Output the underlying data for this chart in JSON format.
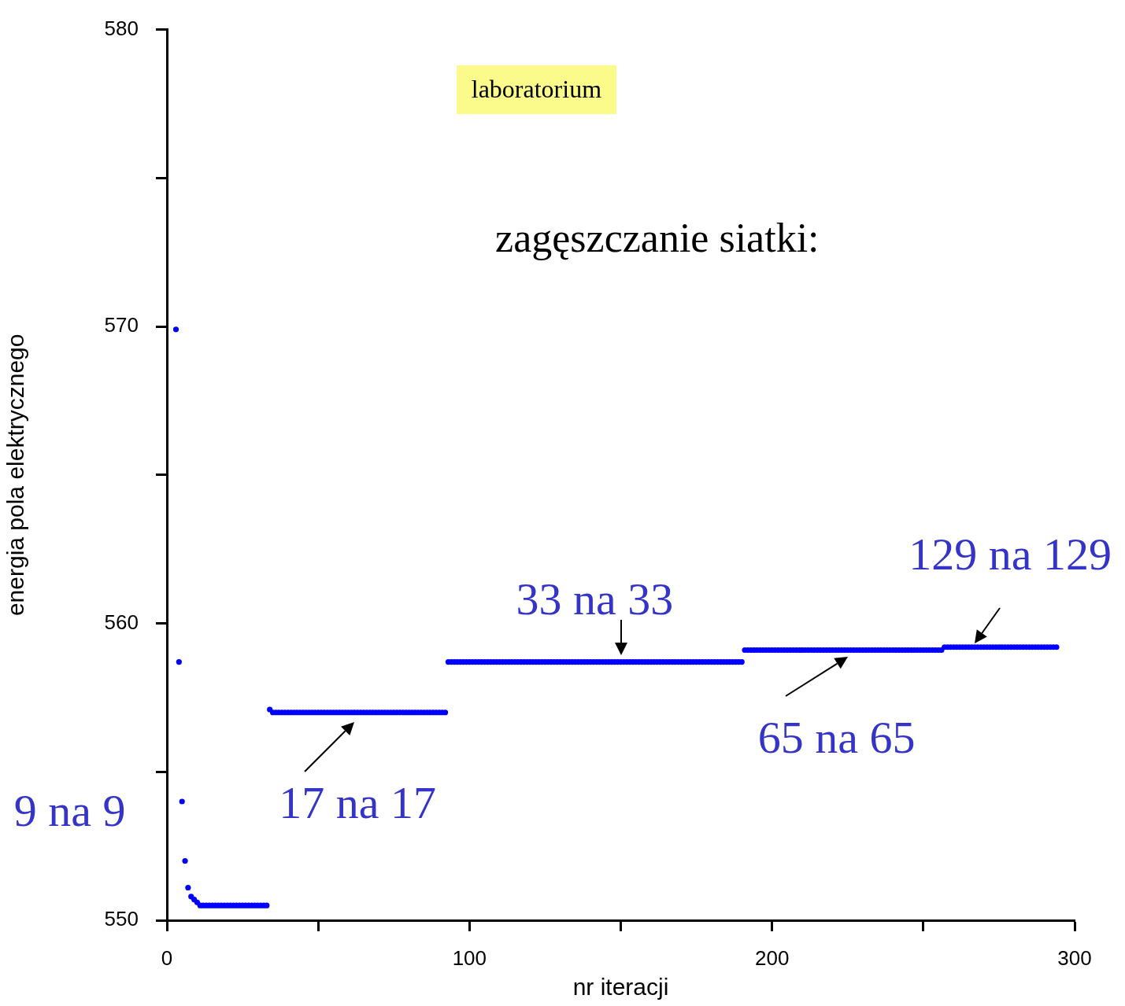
{
  "chart_data": {
    "type": "scatter",
    "title": "zagęszczanie siatki:",
    "xlabel": "nr iteracji",
    "ylabel": "energia pola elektrycznego",
    "annotations": [
      "laboratorium"
    ],
    "xlim": [
      0,
      300
    ],
    "xticks": [
      0,
      {
        "value": 50,
        "label": null
      },
      100,
      {
        "value": 150,
        "label": null
      },
      200,
      {
        "value": 250,
        "label": null
      },
      300
    ],
    "ylim": [
      550,
      580
    ],
    "yticks": [
      550,
      {
        "value": 555,
        "label": null
      },
      560,
      {
        "value": 565,
        "label": null
      },
      570,
      {
        "value": 575,
        "label": null
      },
      580
    ],
    "grid": false,
    "marker": "circle",
    "series": [
      {
        "name": "9 na 9",
        "color": "#0000ff",
        "x": [
          3,
          4,
          5,
          6,
          7,
          8,
          9,
          10,
          11,
          12,
          13,
          14,
          15,
          16,
          17,
          18,
          19,
          20,
          21,
          22,
          23,
          24,
          25,
          26,
          27,
          28,
          29,
          30,
          31,
          32,
          33
        ],
        "values": [
          569.9,
          558.7,
          554.0,
          552.0,
          551.1,
          550.8,
          550.7,
          550.6,
          550.5,
          550.5,
          550.5,
          550.5,
          550.5,
          550.5,
          550.5,
          550.5,
          550.5,
          550.5,
          550.5,
          550.5,
          550.5,
          550.5,
          550.5,
          550.5,
          550.5,
          550.5,
          550.5,
          550.5,
          550.5,
          550.5,
          550.5
        ]
      },
      {
        "name": "17 na 17",
        "color": "#0000ff",
        "x": [
          34,
          35,
          36,
          37,
          38,
          39,
          40,
          41,
          42,
          43,
          44,
          45,
          46,
          47,
          48,
          49,
          50,
          51,
          52,
          53,
          54,
          55,
          56,
          57,
          58,
          59,
          60,
          61,
          62,
          63,
          64,
          65,
          66,
          67,
          68,
          69,
          70,
          71,
          72,
          73,
          74,
          75,
          76,
          77,
          78,
          79,
          80,
          81,
          82,
          83,
          84,
          85,
          86,
          87,
          88,
          89,
          90,
          91,
          92
        ],
        "values": [
          557.1,
          557.0,
          557.0,
          557.0,
          557.0,
          557.0,
          557.0,
          557.0,
          557.0,
          557.0,
          557.0,
          557.0,
          557.0,
          557.0,
          557.0,
          557.0,
          557.0,
          557.0,
          557.0,
          557.0,
          557.0,
          557.0,
          557.0,
          557.0,
          557.0,
          557.0,
          557.0,
          557.0,
          557.0,
          557.0,
          557.0,
          557.0,
          557.0,
          557.0,
          557.0,
          557.0,
          557.0,
          557.0,
          557.0,
          557.0,
          557.0,
          557.0,
          557.0,
          557.0,
          557.0,
          557.0,
          557.0,
          557.0,
          557.0,
          557.0,
          557.0,
          557.0,
          557.0,
          557.0,
          557.0,
          557.0,
          557.0,
          557.0,
          557.0
        ]
      },
      {
        "name": "33 na 33",
        "color": "#0000ff",
        "x": [
          93,
          94,
          95,
          96,
          97,
          98,
          99,
          100,
          101,
          102,
          103,
          104,
          105,
          106,
          107,
          108,
          109,
          110,
          111,
          112,
          113,
          114,
          115,
          116,
          117,
          118,
          119,
          120,
          121,
          122,
          123,
          124,
          125,
          126,
          127,
          128,
          129,
          130,
          131,
          132,
          133,
          134,
          135,
          136,
          137,
          138,
          139,
          140,
          141,
          142,
          143,
          144,
          145,
          146,
          147,
          148,
          149,
          150,
          151,
          152,
          153,
          154,
          155,
          156,
          157,
          158,
          159,
          160,
          161,
          162,
          163,
          164,
          165,
          166,
          167,
          168,
          169,
          170,
          171,
          172,
          173,
          174,
          175,
          176,
          177,
          178,
          179,
          180,
          181,
          182,
          183,
          184,
          185,
          186,
          187,
          188,
          189,
          190
        ],
        "values": [
          558.7,
          558.7,
          558.7,
          558.7,
          558.7,
          558.7,
          558.7,
          558.7,
          558.7,
          558.7,
          558.7,
          558.7,
          558.7,
          558.7,
          558.7,
          558.7,
          558.7,
          558.7,
          558.7,
          558.7,
          558.7,
          558.7,
          558.7,
          558.7,
          558.7,
          558.7,
          558.7,
          558.7,
          558.7,
          558.7,
          558.7,
          558.7,
          558.7,
          558.7,
          558.7,
          558.7,
          558.7,
          558.7,
          558.7,
          558.7,
          558.7,
          558.7,
          558.7,
          558.7,
          558.7,
          558.7,
          558.7,
          558.7,
          558.7,
          558.7,
          558.7,
          558.7,
          558.7,
          558.7,
          558.7,
          558.7,
          558.7,
          558.7,
          558.7,
          558.7,
          558.7,
          558.7,
          558.7,
          558.7,
          558.7,
          558.7,
          558.7,
          558.7,
          558.7,
          558.7,
          558.7,
          558.7,
          558.7,
          558.7,
          558.7,
          558.7,
          558.7,
          558.7,
          558.7,
          558.7,
          558.7,
          558.7,
          558.7,
          558.7,
          558.7,
          558.7,
          558.7,
          558.7,
          558.7,
          558.7,
          558.7,
          558.7,
          558.7,
          558.7,
          558.7,
          558.7,
          558.7,
          558.7
        ]
      },
      {
        "name": "65 na 65",
        "color": "#0000ff",
        "x": [
          191,
          192,
          193,
          194,
          195,
          196,
          197,
          198,
          199,
          200,
          201,
          202,
          203,
          204,
          205,
          206,
          207,
          208,
          209,
          210,
          211,
          212,
          213,
          214,
          215,
          216,
          217,
          218,
          219,
          220,
          221,
          222,
          223,
          224,
          225,
          226,
          227,
          228,
          229,
          230,
          231,
          232,
          233,
          234,
          235,
          236,
          237,
          238,
          239,
          240,
          241,
          242,
          243,
          244,
          245,
          246,
          247,
          248,
          249,
          250,
          251,
          252,
          253,
          254,
          255,
          256
        ],
        "values": [
          559.1,
          559.1,
          559.1,
          559.1,
          559.1,
          559.1,
          559.1,
          559.1,
          559.1,
          559.1,
          559.1,
          559.1,
          559.1,
          559.1,
          559.1,
          559.1,
          559.1,
          559.1,
          559.1,
          559.1,
          559.1,
          559.1,
          559.1,
          559.1,
          559.1,
          559.1,
          559.1,
          559.1,
          559.1,
          559.1,
          559.1,
          559.1,
          559.1,
          559.1,
          559.1,
          559.1,
          559.1,
          559.1,
          559.1,
          559.1,
          559.1,
          559.1,
          559.1,
          559.1,
          559.1,
          559.1,
          559.1,
          559.1,
          559.1,
          559.1,
          559.1,
          559.1,
          559.1,
          559.1,
          559.1,
          559.1,
          559.1,
          559.1,
          559.1,
          559.1,
          559.1,
          559.1,
          559.1,
          559.1,
          559.1,
          559.1
        ]
      },
      {
        "name": "129 na 129",
        "color": "#0000ff",
        "x": [
          257,
          258,
          259,
          260,
          261,
          262,
          263,
          264,
          265,
          266,
          267,
          268,
          269,
          270,
          271,
          272,
          273,
          274,
          275,
          276,
          277,
          278,
          279,
          280,
          281,
          282,
          283,
          284,
          285,
          286,
          287,
          288,
          289,
          290,
          291,
          292,
          293,
          294
        ],
        "values": [
          559.2,
          559.2,
          559.2,
          559.2,
          559.2,
          559.2,
          559.2,
          559.2,
          559.2,
          559.2,
          559.2,
          559.2,
          559.2,
          559.2,
          559.2,
          559.2,
          559.2,
          559.2,
          559.2,
          559.2,
          559.2,
          559.2,
          559.2,
          559.2,
          559.2,
          559.2,
          559.2,
          559.2,
          559.2,
          559.2,
          559.2,
          559.2,
          559.2,
          559.2,
          559.2,
          559.2,
          559.2,
          559.2
        ]
      }
    ]
  }
}
